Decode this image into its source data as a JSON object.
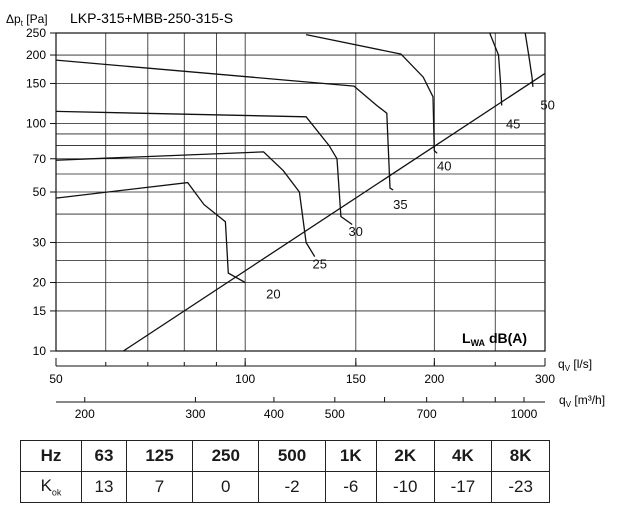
{
  "chart_data": {
    "type": "line",
    "title": "LKP-315+MBB-250-315-S",
    "ylabel": "Δp",
    "ylabel_sub": "t",
    "ylabel_unit": "[Pa]",
    "y_scale": "log",
    "ylim": [
      10,
      250
    ],
    "y_ticks": [
      10,
      15,
      20,
      30,
      50,
      70,
      100,
      150,
      200,
      250
    ],
    "y_gridlines": [
      10,
      15,
      20,
      25,
      30,
      40,
      50,
      60,
      70,
      80,
      90,
      100,
      150,
      200,
      250
    ],
    "x_scale": "log",
    "xlim": [
      50,
      300
    ],
    "x_ticks": [
      50,
      100,
      150,
      200,
      300
    ],
    "x_gridlines": [
      50,
      60,
      70,
      80,
      90,
      100,
      150,
      200,
      250,
      300
    ],
    "xlabel": "q",
    "xlabel_sub": "V",
    "xlabel_unit": "[l/s]",
    "x2_label": "q",
    "x2_label_sub": "V",
    "x2_label_unit": "[m³/h]",
    "x2_ticks": [
      200,
      300,
      400,
      500,
      700,
      1000
    ],
    "annotation": "L",
    "annotation_sub": "WA",
    "annotation_unit": "dB(A)",
    "grid": true,
    "series": [
      {
        "label": "20",
        "points": [
          [
            50,
            47
          ],
          [
            81,
            55
          ],
          [
            86,
            44
          ],
          [
            93,
            37
          ],
          [
            94,
            22
          ],
          [
            100,
            20
          ]
        ]
      },
      {
        "label": "25",
        "points": [
          [
            50,
            69
          ],
          [
            107,
            75
          ],
          [
            115,
            62
          ],
          [
            122,
            50
          ],
          [
            125,
            30
          ],
          [
            129,
            26
          ]
        ]
      },
      {
        "label": "30",
        "points": [
          [
            50,
            113
          ],
          [
            125,
            107
          ],
          [
            136,
            80
          ],
          [
            140,
            70
          ],
          [
            142,
            39
          ],
          [
            148,
            36
          ]
        ]
      },
      {
        "label": "35",
        "points": [
          [
            50,
            190
          ],
          [
            149,
            146
          ],
          [
            162,
            120
          ],
          [
            168,
            111
          ],
          [
            170,
            52
          ],
          [
            172,
            51
          ]
        ]
      },
      {
        "label": "40",
        "points": [
          [
            125,
            246
          ],
          [
            177,
            202
          ],
          [
            192,
            160
          ],
          [
            199,
            131
          ],
          [
            200,
            76
          ],
          [
            202,
            74
          ]
        ]
      },
      {
        "label": "45",
        "points": [
          [
            245,
            250
          ],
          [
            253,
            200
          ],
          [
            255,
            150
          ],
          [
            256,
            120
          ]
        ]
      },
      {
        "label": "50",
        "points": [
          [
            279,
            250
          ],
          [
            283,
            195
          ],
          [
            286,
            160
          ],
          [
            287,
            145
          ]
        ]
      }
    ],
    "system_line": {
      "points": [
        [
          64,
          10
        ],
        [
          300,
          166
        ]
      ]
    },
    "curve_label_positions": [
      [
        108,
        17
      ],
      [
        128,
        23
      ],
      [
        146,
        32
      ],
      [
        172,
        42
      ],
      [
        202,
        62
      ],
      [
        260,
        95
      ],
      [
        295,
        115
      ]
    ]
  },
  "table": {
    "header_label": "Hz",
    "frequencies": [
      "63",
      "125",
      "250",
      "500",
      "1K",
      "2K",
      "4K",
      "8K"
    ],
    "row_label": "K",
    "row_label_sub": "ok",
    "values": [
      "13",
      "7",
      "0",
      "-2",
      "-6",
      "-10",
      "-17",
      "-23"
    ]
  }
}
